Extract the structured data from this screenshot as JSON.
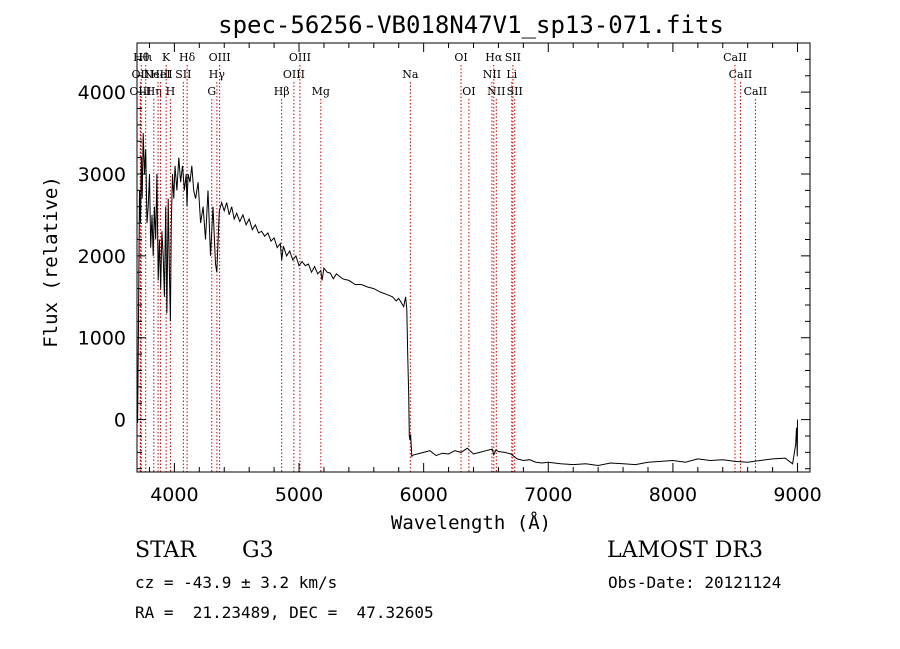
{
  "chart_data": {
    "type": "line",
    "title": "spec-56256-VB018N47V1_sp13-071.fits",
    "xlabel": "Wavelength (Å)",
    "ylabel": "Flux (relative)",
    "xlim": [
      3700,
      9100
    ],
    "ylim": [
      -640,
      4600
    ],
    "x_ticks": [
      4000,
      5000,
      6000,
      7000,
      8000,
      9000
    ],
    "y_ticks": [
      0,
      1000,
      2000,
      3000,
      4000
    ],
    "grid": false,
    "line_color": "#000000",
    "marker_color": "#cc0000",
    "series": [
      {
        "x": [
          3705,
          3712,
          3720,
          3728,
          3735,
          3742,
          3750,
          3760,
          3770,
          3780,
          3790,
          3800,
          3810,
          3820,
          3830,
          3840,
          3850,
          3860,
          3870,
          3880,
          3890,
          3900,
          3910,
          3920,
          3930,
          3940,
          3950,
          3960,
          3968,
          3975,
          3985,
          3995,
          4005,
          4020,
          4035,
          4050,
          4065,
          4080,
          4095,
          4101,
          4110,
          4125,
          4140,
          4155,
          4170,
          4190,
          4210,
          4230,
          4250,
          4270,
          4290,
          4310,
          4330,
          4340,
          4360,
          4380,
          4400,
          4420,
          4440,
          4460,
          4480,
          4500,
          4525,
          4550,
          4575,
          4600,
          4625,
          4650,
          4675,
          4700,
          4725,
          4750,
          4775,
          4800,
          4825,
          4850,
          4861,
          4875,
          4900,
          4925,
          4950,
          4975,
          5000,
          5025,
          5050,
          5075,
          5100,
          5125,
          5150,
          5175,
          5185,
          5200,
          5225,
          5250,
          5275,
          5300,
          5350,
          5400,
          5450,
          5500,
          5550,
          5600,
          5650,
          5700,
          5750,
          5780,
          5800,
          5820,
          5840,
          5855,
          5865,
          5872,
          5880,
          5885,
          5890,
          5895,
          5905,
          5920,
          5950,
          6000,
          6050,
          6100,
          6150,
          6200,
          6250,
          6300,
          6350,
          6400,
          6450,
          6500,
          6550,
          6563,
          6580,
          6600,
          6650,
          6700,
          6750,
          6800,
          6850,
          6900,
          6950,
          7000,
          7100,
          7200,
          7300,
          7400,
          7500,
          7600,
          7700,
          7800,
          7900,
          8000,
          8100,
          8200,
          8300,
          8400,
          8500,
          8600,
          8700,
          8800,
          8900,
          8960,
          8975,
          8985,
          8992,
          8998,
          9000
        ],
        "y": [
          -40,
          1200,
          2800,
          2400,
          3200,
          2700,
          3500,
          3000,
          3300,
          2400,
          2600,
          3000,
          2100,
          2500,
          2000,
          2600,
          2200,
          3000,
          1700,
          2200,
          1600,
          2300,
          2000,
          1500,
          2600,
          1300,
          2700,
          1800,
          1200,
          2400,
          3000,
          2700,
          3100,
          2800,
          3200,
          2900,
          3100,
          2800,
          3000,
          2600,
          3000,
          2900,
          3100,
          2800,
          2700,
          2900,
          2400,
          2600,
          2200,
          2800,
          2000,
          2600,
          1900,
          1800,
          2550,
          2650,
          2550,
          2650,
          2500,
          2600,
          2450,
          2520,
          2420,
          2500,
          2380,
          2450,
          2320,
          2380,
          2280,
          2300,
          2240,
          2280,
          2180,
          2220,
          2100,
          2150,
          1950,
          2120,
          2000,
          2060,
          1950,
          2000,
          1880,
          1930,
          1880,
          1900,
          1800,
          1870,
          1780,
          1820,
          1700,
          1850,
          1800,
          1790,
          1720,
          1780,
          1720,
          1700,
          1650,
          1650,
          1620,
          1600,
          1560,
          1530,
          1500,
          1450,
          1480,
          1430,
          1380,
          1500,
          1350,
          800,
          300,
          -200,
          -250,
          -180,
          -450,
          -430,
          -420,
          -400,
          -380,
          -440,
          -410,
          -420,
          -380,
          -400,
          -350,
          -420,
          -400,
          -380,
          -360,
          -430,
          -370,
          -390,
          -400,
          -420,
          -480,
          -500,
          -490,
          -520,
          -530,
          -520,
          -540,
          -550,
          -540,
          -560,
          -530,
          -540,
          -550,
          -520,
          -510,
          -500,
          -520,
          -480,
          -500,
          -490,
          -510,
          -520,
          -500,
          -480,
          -470,
          -540,
          -400,
          -300,
          -100,
          -450,
          0
        ]
      }
    ],
    "line_markers": [
      {
        "wl": 3734,
        "label": "Hθ",
        "row": 0
      },
      {
        "wl": 3727,
        "label": "OII",
        "row": 1
      },
      {
        "wl": 3727,
        "label": "OIII",
        "row": 2
      },
      {
        "wl": 3770,
        "label": "Hι",
        "row": 0
      },
      {
        "wl": 3835,
        "label": "Hη",
        "row": 2
      },
      {
        "wl": 3869,
        "label": "NeIII",
        "row": 1
      },
      {
        "wl": 3889,
        "label": "HeI",
        "row": 1
      },
      {
        "wl": 3934,
        "label": "K",
        "row": 0
      },
      {
        "wl": 3968,
        "label": "H",
        "row": 2
      },
      {
        "wl": 4072,
        "label": "SII",
        "row": 1
      },
      {
        "wl": 4102,
        "label": "Hδ",
        "row": 0
      },
      {
        "wl": 4300,
        "label": "G",
        "row": 2
      },
      {
        "wl": 4341,
        "label": "Hγ",
        "row": 1
      },
      {
        "wl": 4363,
        "label": "OIII",
        "row": 0
      },
      {
        "wl": 4861,
        "label": "Hβ",
        "row": 2
      },
      {
        "wl": 4959,
        "label": "OIII",
        "row": 1
      },
      {
        "wl": 5007,
        "label": "OIII",
        "row": 0
      },
      {
        "wl": 5175,
        "label": "Mg",
        "row": 2
      },
      {
        "wl": 5893,
        "label": "Na",
        "row": 1
      },
      {
        "wl": 6300,
        "label": "OI",
        "row": 0
      },
      {
        "wl": 6363,
        "label": "OI",
        "row": 2
      },
      {
        "wl": 6548,
        "label": "NII",
        "row": 1
      },
      {
        "wl": 6563,
        "label": "Hα",
        "row": 0
      },
      {
        "wl": 6583,
        "label": "NII",
        "row": 2
      },
      {
        "wl": 6707,
        "label": "Li",
        "row": 1
      },
      {
        "wl": 6716,
        "label": "SII",
        "row": 0
      },
      {
        "wl": 6731,
        "label": "SII",
        "row": 2
      },
      {
        "wl": 8498,
        "label": "CaII",
        "row": 0
      },
      {
        "wl": 8542,
        "label": "CaII",
        "row": 1
      },
      {
        "wl": 8662,
        "label": "CaII",
        "row": 2
      }
    ]
  },
  "info": {
    "object_class": "STAR",
    "subclass": "G3",
    "survey": "LAMOST DR3",
    "redshift_line": "cz = -43.9 ± 3.2 km/s",
    "obs_date_line": "Obs-Date: 20121124",
    "coords_line": "RA =  21.23489, DEC =  47.32605"
  }
}
